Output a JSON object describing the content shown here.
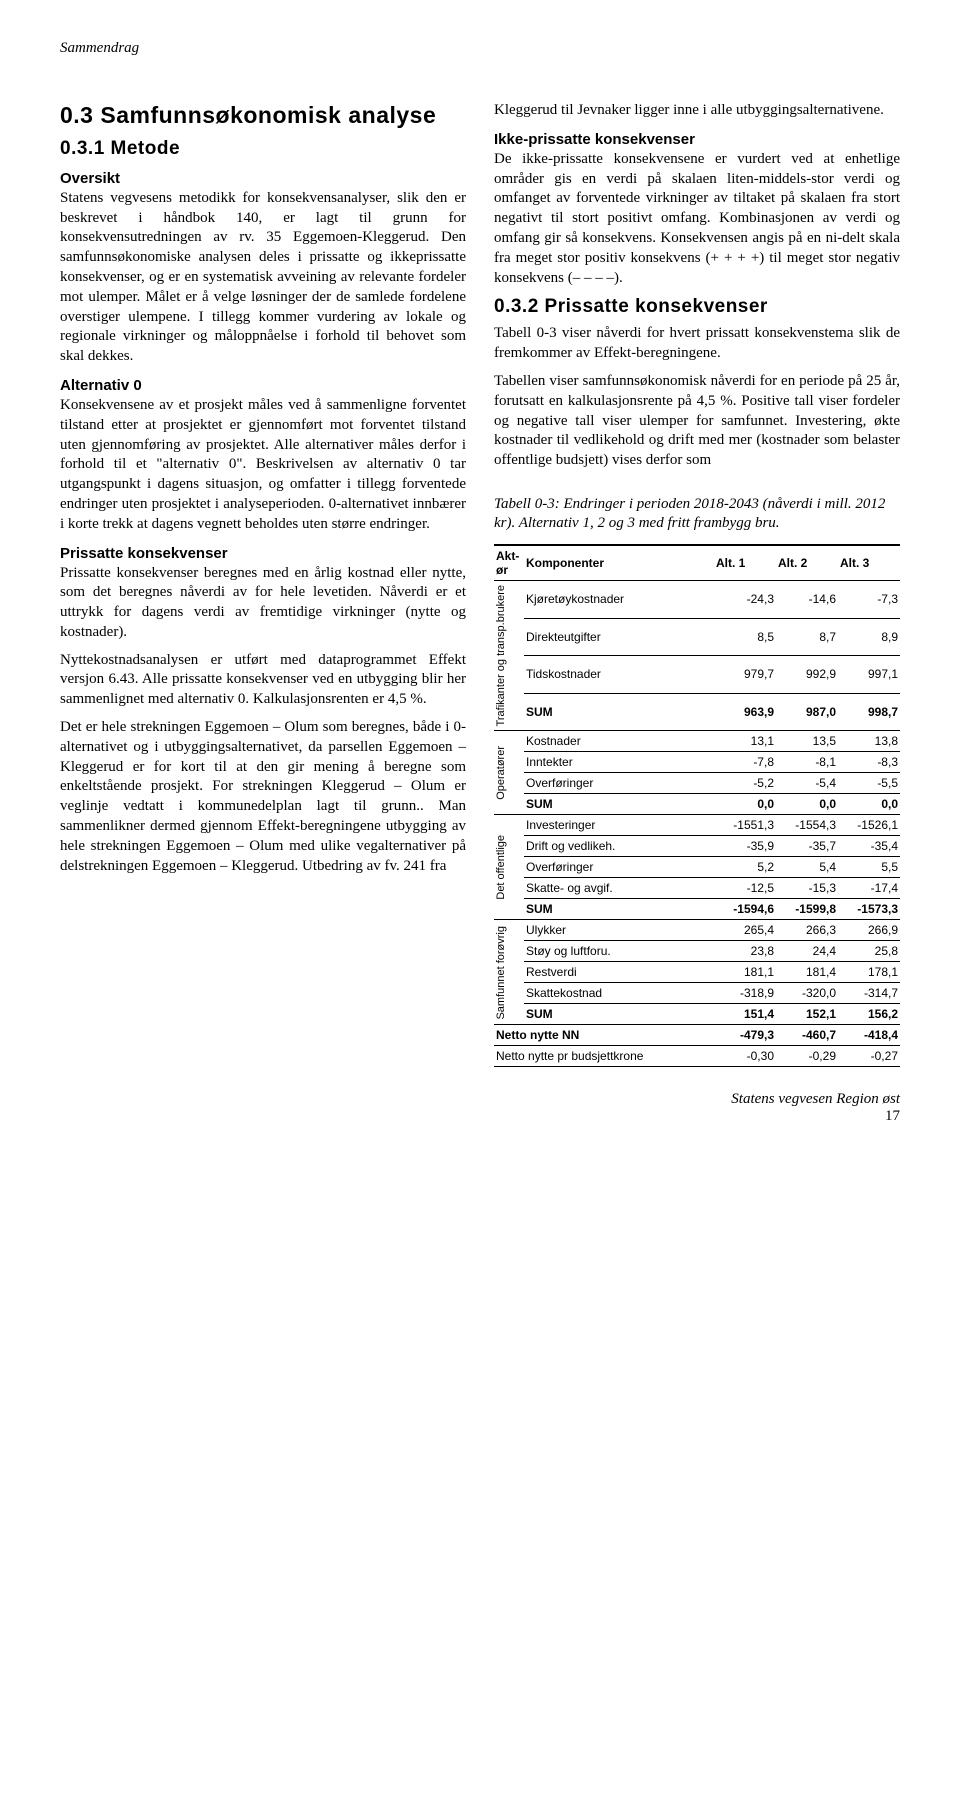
{
  "header": {
    "running_title": "Sammendrag"
  },
  "left": {
    "h2": "0.3 Samfunnsøkonomisk analyse",
    "h3_1": "0.3.1 Metode",
    "h4_oversikt": "Oversikt",
    "p1": "Statens vegvesens metodikk for konsekvens­analyser, slik den er beskrevet i håndbok 140, er lagt til grunn for konsekvensutredningen av rv. 35 Eggemoen-Kleggerud. Den samfunns­økonomiske analysen deles i prissatte og ikke­prissatte konsekvenser, og er en systematisk avveining av relevante fordeler mot ulemper. Målet er å velge løsninger der de samlede fordelene overstiger ulempene. I tillegg kommer vurdering av lokale og regionale virkninger og måloppnåelse i forhold til behovet som skal dekkes.",
    "h4_alt0": "Alternativ 0",
    "p2": "Konsekvensene av et prosjekt måles ved å sammenligne forventet tilstand etter at pro­sjektet er gjennomført mot forventet tilstand uten gjennomføring av prosjektet. Alle alter­nativer måles derfor i forhold til et \"alternativ 0\". Beskrivelsen av alternativ 0 tar utgangs­punkt i dagens situasjon, og omfatter i tillegg forventede endringer uten prosjektet i analy­seperioden. 0-alternativet innbærer i korte trekk at dagens vegnett beholdes uten større endringer.",
    "h4_pris": "Prissatte konsekvenser",
    "p3": "Prissatte konsekvenser beregnes med en årlig kostnad eller nytte, som det beregnes nåverdi av for hele levetiden. Nåverdi er et uttrykk for dagens verdi av fremtidige virkninger (nytte og kostnader).",
    "p4": "Nyttekostnadsanalysen er utført med dataprogrammet Effekt versjon 6.43. Alle prissatte konsekvenser ved en utbygging blir her sammenlignet med alternativ 0. Kalkulasjonsrenten er 4,5 %.",
    "p5": "Det er hele strekningen Eggemoen – Olum som beregnes, både i 0-alternativet og i utbyggingsalternativet, da parsellen Eggemoen – Kleggerud er for kort til at den gir mening å beregne som enkeltstående prosjekt. For strekningen Kleggerud – Olum er veglinje vedtatt i kommunedelplan lagt til grunn.. Man sammenlikner dermed gjennom Effekt-beregningene utbygging av hele strekningen Eggemoen – Olum med ulike vegalternativer på delstrekningen Eggemoen – Kleggerud. Utbedring av fv. 241 fra"
  },
  "right": {
    "p1": "Kleggerud til Jevnaker ligger inne i alle utbyggingsalternativene.",
    "h4_ikke": "Ikke-prissatte konsekvenser",
    "p2": "De ikke-prissatte konsekvensene er vurdert ved at enhetlige områder gis en verdi på skalaen liten-middels-stor verdi og omfanget av forventede virkninger av tiltaket på skalaen fra stort negativt til stort positivt omfang. Kombinasjonen av verdi og omfang gir så konsekvens. Konsekvensen angis på en ni-delt skala fra meget stor positiv konsekvens (+ + + +) til meget stor negativ konsekvens (– – – –).",
    "h3_2": "0.3.2 Prissatte konsekvenser",
    "p3": "Tabell 0-3 viser nåverdi for hvert prissatt konsekvenstema slik de fremkommer av Effekt-beregningene.",
    "p4": "Tabellen viser samfunnsøkonomisk nåverdi for en periode på 25 år, forutsatt en kalkulasjonsrente på 4,5 %. Positive tall viser fordeler og negative tall viser ulemper for samfunnet. Investering, økte kostnader til vedlikehold og drift med mer (kostnader som belaster offentlige budsjett) vises derfor som",
    "caption": "Tabell 0-3: Endringer i perioden 2018-2043 (nåverdi i mill. 2012 kr). Alternativ 1, 2 og 3 med fritt frambygg bru."
  },
  "table": {
    "headers": {
      "c0": "Akt-ør",
      "c1": "Komponenter",
      "c2": "Alt. 1",
      "c3": "Alt. 2",
      "c4": "Alt. 3"
    },
    "groups": [
      {
        "label": "Trafikanter og transp.brukere",
        "rows": [
          {
            "name": "Kjøretøy­kostnader",
            "v": [
              "-24,3",
              "-14,6",
              "-7,3"
            ]
          },
          {
            "name": "Direkteutgifter",
            "v": [
              "8,5",
              "8,7",
              "8,9"
            ]
          },
          {
            "name": "Tidskostnader",
            "v": [
              "979,7",
              "992,9",
              "997,1"
            ]
          }
        ],
        "sum": [
          "963,9",
          "987,0",
          "998,7"
        ]
      },
      {
        "label": "Operatører",
        "rows": [
          {
            "name": "Kostnader",
            "v": [
              "13,1",
              "13,5",
              "13,8"
            ]
          },
          {
            "name": "Inntekter",
            "v": [
              "-7,8",
              "-8,1",
              "-8,3"
            ]
          },
          {
            "name": "Overføringer",
            "v": [
              "-5,2",
              "-5,4",
              "-5,5"
            ]
          }
        ],
        "sum": [
          "0,0",
          "0,0",
          "0,0"
        ]
      },
      {
        "label": "Det offentlige",
        "rows": [
          {
            "name": "Investeringer",
            "v": [
              "-1551,3",
              "-1554,3",
              "-1526,1"
            ]
          },
          {
            "name": "Drift og vedlikeh.",
            "v": [
              "-35,9",
              "-35,7",
              "-35,4"
            ]
          },
          {
            "name": "Overføringer",
            "v": [
              "5,2",
              "5,4",
              "5,5"
            ]
          },
          {
            "name": "Skatte- og avgif.",
            "v": [
              "-12,5",
              "-15,3",
              "-17,4"
            ]
          }
        ],
        "sum": [
          "-1594,6",
          "-1599,8",
          "-1573,3"
        ]
      },
      {
        "label": "Samfunnet forøvrig",
        "rows": [
          {
            "name": "Ulykker",
            "v": [
              "265,4",
              "266,3",
              "266,9"
            ]
          },
          {
            "name": "Støy og luftforu.",
            "v": [
              "23,8",
              "24,4",
              "25,8"
            ]
          },
          {
            "name": "Restverdi",
            "v": [
              "181,1",
              "181,4",
              "178,1"
            ]
          },
          {
            "name": "Skattekostnad",
            "v": [
              "-318,9",
              "-320,0",
              "-314,7"
            ]
          }
        ],
        "sum": [
          "151,4",
          "152,1",
          "156,2"
        ]
      }
    ],
    "netto_nn": {
      "label": "Netto nytte NN",
      "v": [
        "-479,3",
        "-460,7",
        "-418,4"
      ]
    },
    "netto_bk": {
      "label": "Netto nytte pr budsjettkrone",
      "v": [
        "-0,30",
        "-0,29",
        "-0,27"
      ]
    }
  },
  "footer": {
    "org": "Statens vegvesen Region øst",
    "page": "17"
  }
}
